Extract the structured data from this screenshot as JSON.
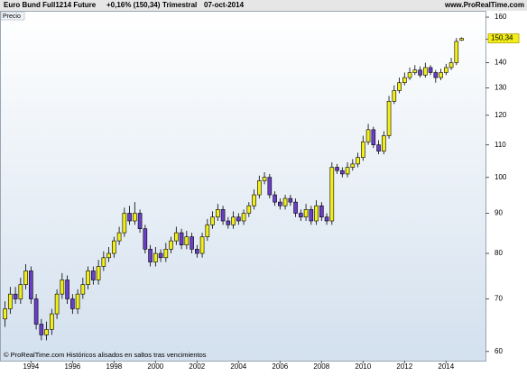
{
  "chart_data": {
    "type": "candlestick",
    "title": "Euro Bund Full1214 Future",
    "change": "+0,16% (150,34)",
    "period": "Trimestral",
    "date": "07-oct-2014",
    "source": "www.ProRealTime.com",
    "panel_label": "Precio",
    "footer": "© ProRealTime.com Históricos alisados en saltos tras vencimientos",
    "up_color": "#f2ee1a",
    "down_color": "#6a3fc8",
    "log_scale": true,
    "last_price": {
      "value": 150.34,
      "label": "150,34"
    },
    "xlim": [
      1992.55,
      2015.9
    ],
    "xticks": [
      1994,
      1996,
      1998,
      2000,
      2002,
      2004,
      2006,
      2008,
      2010,
      2012,
      2014
    ],
    "ylim": [
      58.4,
      163
    ],
    "yticks": [
      60,
      70,
      80,
      90,
      100,
      110,
      120,
      130,
      140,
      150,
      160
    ],
    "x": [
      1992.75,
      1993,
      1993.25,
      1993.5,
      1993.75,
      1994,
      1994.25,
      1994.5,
      1994.75,
      1995,
      1995.25,
      1995.5,
      1995.75,
      1996,
      1996.25,
      1996.5,
      1996.75,
      1997,
      1997.25,
      1997.5,
      1997.75,
      1998,
      1998.25,
      1998.5,
      1998.75,
      1999,
      1999.25,
      1999.5,
      1999.75,
      2000,
      2000.25,
      2000.5,
      2000.75,
      2001,
      2001.25,
      2001.5,
      2001.75,
      2002,
      2002.25,
      2002.5,
      2002.75,
      2003,
      2003.25,
      2003.5,
      2003.75,
      2004,
      2004.25,
      2004.5,
      2004.75,
      2005,
      2005.25,
      2005.5,
      2005.75,
      2006,
      2006.25,
      2006.5,
      2006.75,
      2007,
      2007.25,
      2007.5,
      2007.75,
      2008,
      2008.25,
      2008.5,
      2008.75,
      2009,
      2009.25,
      2009.5,
      2009.75,
      2010,
      2010.25,
      2010.5,
      2010.75,
      2011,
      2011.25,
      2011.5,
      2011.75,
      2012,
      2012.25,
      2012.5,
      2012.75,
      2013,
      2013.25,
      2013.5,
      2013.75,
      2014,
      2014.25,
      2014.5,
      2014.75
    ],
    "open": [
      66,
      68,
      71,
      70,
      73,
      76,
      70,
      65,
      63,
      64,
      67,
      71,
      74,
      70,
      68,
      71,
      73,
      76,
      74,
      77,
      79,
      80,
      83,
      85,
      90,
      88,
      90,
      86,
      81,
      78,
      80,
      79,
      81,
      83,
      85,
      82,
      84,
      81,
      80,
      84,
      87,
      89,
      91,
      88,
      87,
      89,
      88,
      90,
      92,
      95,
      99,
      100,
      95,
      93,
      92,
      94,
      93,
      90,
      89,
      91,
      88,
      92,
      89,
      88,
      103,
      102,
      101,
      103,
      104,
      106,
      111,
      115,
      110,
      108,
      113,
      125,
      129,
      132,
      134,
      136,
      137,
      135,
      138,
      136,
      134,
      136,
      138,
      140,
      149.5
    ],
    "high": [
      69.5,
      72.5,
      72.5,
      74.5,
      77.5,
      77,
      71,
      66,
      65.5,
      68,
      72,
      75.5,
      75,
      71,
      72,
      74.5,
      77,
      77,
      78.5,
      80.5,
      81.5,
      84,
      86.5,
      91.5,
      92,
      93,
      91,
      87,
      82,
      81.5,
      81,
      82.5,
      84,
      86.5,
      86,
      85.5,
      85,
      82,
      85,
      88.5,
      90.5,
      92.5,
      92,
      89,
      90.5,
      90,
      91,
      93,
      96.5,
      100.5,
      101.5,
      101,
      96,
      94,
      95,
      95,
      94,
      91,
      92.5,
      92,
      93.5,
      93,
      90,
      104.5,
      104,
      103,
      104.5,
      105.5,
      107.5,
      113,
      117,
      116,
      111.5,
      114.5,
      127,
      131,
      134,
      136,
      138,
      139,
      138.5,
      140,
      139,
      137,
      137.5,
      139.5,
      142,
      150.5,
      150.8
    ],
    "low": [
      64.5,
      67,
      69,
      69,
      72,
      69,
      64,
      62,
      62,
      63,
      66,
      70,
      69,
      67,
      67,
      70,
      72,
      73,
      73,
      76,
      78,
      79,
      82,
      84,
      87,
      87,
      85,
      80,
      77,
      77,
      78,
      78,
      80,
      82,
      81,
      81,
      80,
      79,
      79,
      83,
      86,
      88,
      87,
      86,
      86,
      87,
      87,
      89,
      91,
      94,
      98,
      94,
      92,
      91,
      91,
      92,
      89,
      88,
      88,
      87,
      87,
      88,
      87,
      87,
      101,
      100,
      100,
      102,
      103,
      105,
      110,
      109,
      107,
      107,
      112,
      124,
      128,
      131,
      133,
      135,
      134,
      134,
      135,
      132,
      133,
      135,
      137,
      139,
      149.2
    ],
    "close": [
      68,
      71,
      70,
      73,
      76,
      70,
      65,
      63,
      64,
      67,
      71,
      74,
      70,
      68,
      71,
      73,
      76,
      74,
      77,
      79,
      80,
      83,
      85,
      90,
      88,
      90,
      86,
      81,
      78,
      80,
      79,
      81,
      83,
      85,
      82,
      84,
      81,
      80,
      84,
      87,
      89,
      91,
      88,
      87,
      89,
      88,
      90,
      92,
      95,
      99,
      100,
      95,
      93,
      92,
      94,
      93,
      90,
      89,
      91,
      88,
      92,
      89,
      88,
      103,
      102,
      101,
      103,
      104,
      106,
      111,
      115,
      110,
      108,
      113,
      125,
      129,
      132,
      134,
      136,
      137,
      135,
      138,
      136,
      134,
      136,
      138,
      140,
      149,
      150.34
    ]
  }
}
